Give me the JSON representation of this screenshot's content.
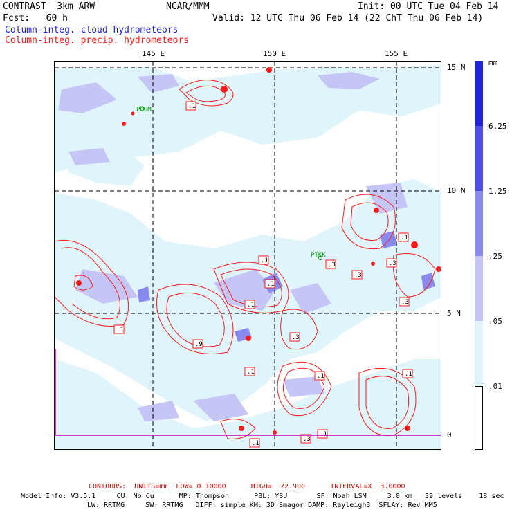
{
  "header": {
    "model": "CONTRAST  3km ARW",
    "org": "NCAR/MMM",
    "init": "Init: 00 UTC Tue 04 Feb 14",
    "fcst": "Fcst:   60 h",
    "valid": "Valid: 12 UTC Thu 06 Feb 14 (22 ChT Thu 06 Feb 14)",
    "field_cloud": "Column-integ. cloud hydrometeors",
    "field_precip": "Column-integ. precip. hydrometeors"
  },
  "axes": {
    "lon_labels": [
      "145 E",
      "150 E",
      "155 E"
    ],
    "lat_labels": [
      "15 N",
      "10 N",
      "5 N",
      "0"
    ]
  },
  "stations": [
    "PGUM",
    "PTKK"
  ],
  "contour_labels": [
    ".1",
    ".1",
    ".3",
    ".3",
    ".1",
    ".3",
    ".3",
    ".1",
    ".1",
    ".1",
    ".1",
    ".3",
    ".9",
    ".1",
    ".1",
    ".1",
    ".1",
    ".3",
    ".1",
    ".1"
  ],
  "colorbar": {
    "unit": "mm",
    "labels": [
      "6.25",
      "1.25",
      ".25",
      ".05",
      ".01"
    ],
    "colors": [
      "#2222dd",
      "#4f4fe8",
      "#8a8aee",
      "#c6c6f6",
      "#dff4fb",
      "#ffffff"
    ]
  },
  "colors": {
    "cloud_light": "#dff4fb",
    "cloud_mid": "#c6c6f6",
    "cloud_dark": "#8a8aee",
    "precip": "#ff1a1a",
    "magenta": "#cc00cc"
  },
  "footer": {
    "contours": "CONTOURS:  UNITS=mm  LOW= 0.10000      HIGH=  72.900      INTERVAL=X  3.0000",
    "model_info_1": "Model Info: V3.5.1     CU: No Cu      MP: Thompson      PBL: YSU       SF: Noah LSM     3.0 km   39 levels    18 sec",
    "model_info_2": "LW: RRTMG     SW: RRTMG   DIFF: simple KM: 3D Smagor DAMP: Rayleigh3  SFLAY: Rev MM5"
  }
}
